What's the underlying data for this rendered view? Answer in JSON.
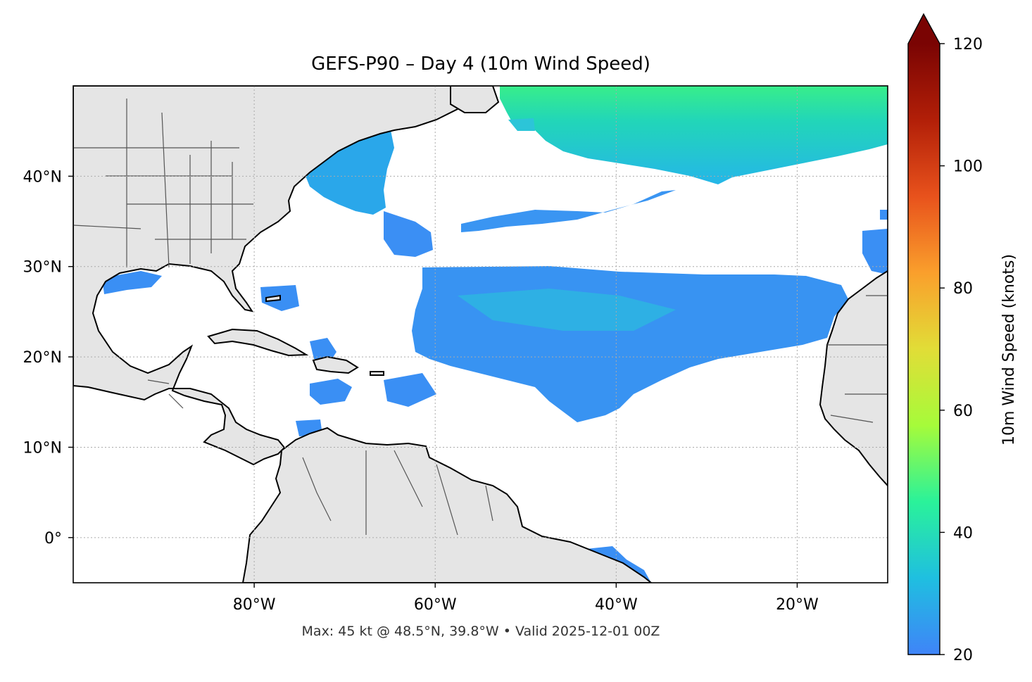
{
  "title": "GEFS-P90 – Day 4 (10m Wind Speed)",
  "footer": "Max: 45 kt @ 48.5°N, 39.8°W • Valid 2025-12-01 00Z",
  "map": {
    "lon_range": [
      -100,
      -10
    ],
    "lat_range": [
      -5,
      50
    ],
    "lon_ticks": [
      {
        "value": -80,
        "label": "80°W"
      },
      {
        "value": -60,
        "label": "60°W"
      },
      {
        "value": -40,
        "label": "40°W"
      },
      {
        "value": -20,
        "label": "20°W"
      }
    ],
    "lat_ticks": [
      {
        "value": 0,
        "label": "0°"
      },
      {
        "value": 10,
        "label": "10°N"
      },
      {
        "value": 20,
        "label": "20°N"
      },
      {
        "value": 30,
        "label": "30°N"
      },
      {
        "value": 40,
        "label": "40°N"
      }
    ],
    "gridlines": "dotted",
    "land_color": "#e5e5e5"
  },
  "colorbar": {
    "label": "10m Wind Speed (knots)",
    "min": 20,
    "max": 120,
    "ticks": [
      {
        "value": 20,
        "label": "20"
      },
      {
        "value": 40,
        "label": "40"
      },
      {
        "value": 60,
        "label": "60"
      },
      {
        "value": 80,
        "label": "80"
      },
      {
        "value": 100,
        "label": "100"
      },
      {
        "value": 120,
        "label": "120"
      }
    ],
    "extend": "max",
    "colormap": "turbo",
    "stops": [
      "#3f84f8",
      "#1fbfe0",
      "#2af29a",
      "#a6fb3a",
      "#e1dd37",
      "#fa9f2c",
      "#e8521c",
      "#b21f08",
      "#7a0403"
    ]
  },
  "wind_regions": [
    {
      "name": "north-atlantic-jet",
      "speed_kt": 38
    },
    {
      "name": "subtropical-trade-belt",
      "speed_kt": 26
    },
    {
      "name": "northeast-coast-band",
      "speed_kt": 25
    },
    {
      "name": "mid-atlantic-streak",
      "speed_kt": 24
    },
    {
      "name": "equatorial-patch",
      "speed_kt": 24
    }
  ]
}
